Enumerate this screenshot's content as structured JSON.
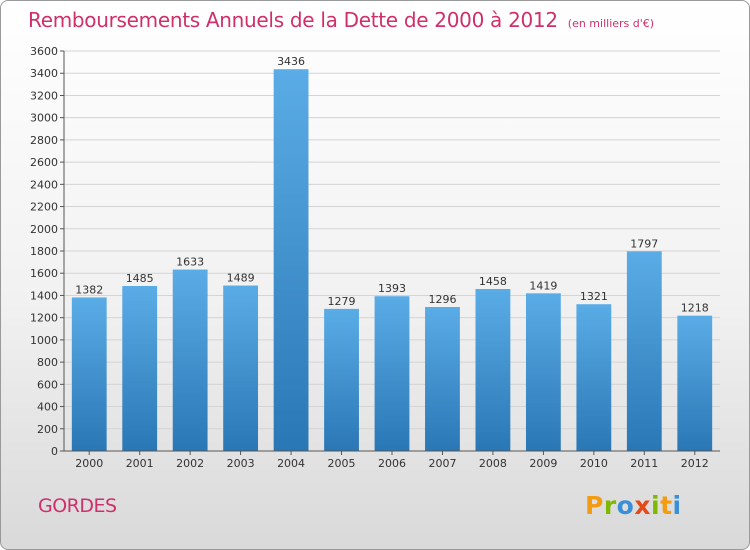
{
  "header": {
    "title": "Remboursements Annuels de la Dette de 2000 à 2012",
    "subtitle": "(en milliers d'€)"
  },
  "footer": {
    "commune": "GORDES",
    "brand": "Proxiti",
    "brand_letters": [
      "P",
      "r",
      "o",
      "x",
      "i",
      "t",
      "i"
    ],
    "brand_colors": [
      "#f39c12",
      "#7fb800",
      "#3a8fd6",
      "#e64a19",
      "#7fb800",
      "#f39c12",
      "#3a8fd6"
    ]
  },
  "chart_data": {
    "type": "bar",
    "title": "Remboursements Annuels de la Dette de 2000 à 2012",
    "subtitle": "(en milliers d'€)",
    "xlabel": "",
    "ylabel": "",
    "categories": [
      "2000",
      "2001",
      "2002",
      "2003",
      "2004",
      "2005",
      "2006",
      "2007",
      "2008",
      "2009",
      "2010",
      "2011",
      "2012"
    ],
    "values": [
      1382,
      1485,
      1633,
      1489,
      3436,
      1279,
      1393,
      1296,
      1458,
      1419,
      1321,
      1797,
      1218
    ],
    "ylim": [
      0,
      3600
    ],
    "yticks": [
      0,
      200,
      400,
      600,
      800,
      1000,
      1200,
      1400,
      1600,
      1800,
      2000,
      2200,
      2400,
      2600,
      2800,
      3000,
      3200,
      3400,
      3600
    ],
    "grid": true,
    "colors": {
      "bar_top": "#5aace6",
      "bar_bottom": "#2a77b5",
      "grid": "#d4d4d4",
      "title": "#d0306a"
    }
  }
}
